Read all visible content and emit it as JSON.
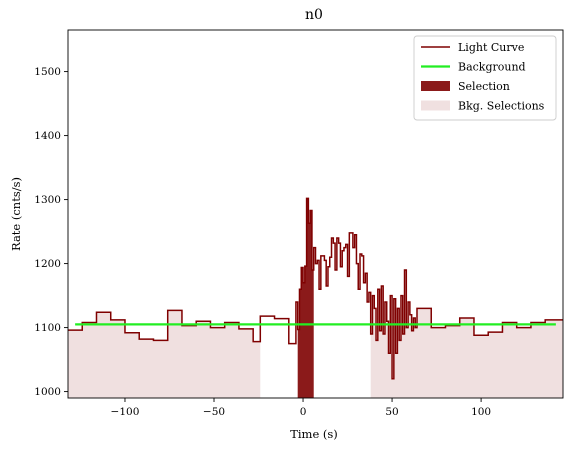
{
  "chart_data": {
    "type": "line",
    "title": "n0",
    "xlabel": "Time (s)",
    "ylabel": "Rate (cnts/s)",
    "xlim": [
      -132,
      146
    ],
    "ylim": [
      990,
      1565
    ],
    "xticks": [
      -100,
      -50,
      0,
      50,
      100
    ],
    "yticks": [
      1000,
      1100,
      1200,
      1300,
      1400,
      1500
    ],
    "grid": false,
    "legend": {
      "placement": "top-right",
      "entries": [
        {
          "name": "Light Curve",
          "kind": "line",
          "color": "#7f0000"
        },
        {
          "name": "Background",
          "kind": "line",
          "color": "#22ee22"
        },
        {
          "name": "Selection",
          "kind": "patch",
          "color": "#8b1a1a"
        },
        {
          "name": "Bkg. Selections",
          "kind": "patch",
          "color": "#f0e0e0"
        }
      ]
    },
    "light_curve": {
      "color": "#7f0000",
      "x": [
        -132,
        -124,
        -116,
        -108,
        -100,
        -92,
        -84,
        -76,
        -68,
        -60,
        -52,
        -44,
        -36,
        -28,
        -24,
        -16,
        -8,
        -4,
        -3,
        -2,
        -1,
        0,
        1,
        2,
        3,
        4,
        5,
        6,
        7,
        8,
        9,
        10,
        11,
        12,
        13,
        14,
        15,
        16,
        17,
        18,
        19,
        20,
        21,
        22,
        23,
        24,
        25,
        26,
        27,
        28,
        29,
        30,
        31,
        32,
        33,
        34,
        35,
        36,
        37,
        38,
        39,
        40,
        41,
        42,
        43,
        44,
        45,
        46,
        47,
        48,
        49,
        50,
        51,
        52,
        53,
        54,
        55,
        56,
        57,
        58,
        59,
        60,
        61,
        62,
        63,
        64,
        72,
        80,
        88,
        96,
        104,
        112,
        120,
        128,
        136,
        146
      ],
      "y": [
        1096,
        1108,
        1124,
        1112,
        1092,
        1082,
        1080,
        1127,
        1103,
        1110,
        1100,
        1108,
        1098,
        1078,
        1118,
        1114,
        1075,
        1140,
        1097,
        1160,
        1194,
        1170,
        1196,
        1302,
        1263,
        1283,
        1190,
        1225,
        1200,
        1205,
        1160,
        1212,
        1212,
        1205,
        1165,
        1195,
        1210,
        1240,
        1232,
        1190,
        1240,
        1232,
        1195,
        1220,
        1225,
        1230,
        1180,
        1248,
        1248,
        1225,
        1245,
        1200,
        1160,
        1215,
        1212,
        1170,
        1185,
        1140,
        1155,
        1090,
        1150,
        1130,
        1080,
        1160,
        1095,
        1165,
        1090,
        1140,
        1110,
        1060,
        1150,
        1020,
        1145,
        1060,
        1130,
        1080,
        1150,
        1090,
        1190,
        1100,
        1140,
        1120,
        1095,
        1115,
        1100,
        1130,
        1100,
        1103,
        1115,
        1088,
        1093,
        1108,
        1100,
        1108,
        1112,
        1112
      ]
    },
    "background": {
      "color": "#22ee22",
      "x_range": [
        -128,
        142
      ],
      "y": 1105
    },
    "selection": {
      "color": "#8b1a1a",
      "x_range": [
        -3,
        6
      ]
    },
    "bkg_selections": {
      "color": "#f0e0e0",
      "ranges": [
        [
          -132,
          -24
        ],
        [
          38,
          146
        ]
      ]
    }
  }
}
